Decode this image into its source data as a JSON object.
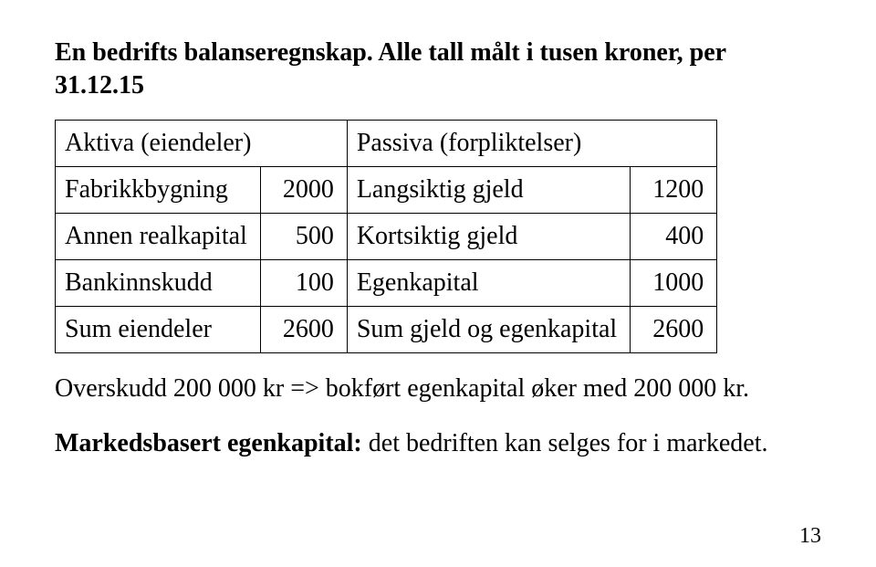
{
  "heading": "En bedrifts balanseregnskap. Alle tall målt i tusen kroner, per 31.12.15",
  "table": {
    "rows": [
      {
        "c1": "Aktiva (eiendeler)",
        "c2": "",
        "c3": "Passiva (forpliktelser)",
        "c4": "",
        "header": true
      },
      {
        "c1": "Fabrikkbygning",
        "c2": "2000",
        "c3": "Langsiktig gjeld",
        "c4": "1200"
      },
      {
        "c1": "Annen realkapital",
        "c2": "500",
        "c3": "Kortsiktig gjeld",
        "c4": "400"
      },
      {
        "c1": "Bankinnskudd",
        "c2": "100",
        "c3": "Egenkapital",
        "c4": "1000"
      },
      {
        "c1": "Sum eiendeler",
        "c2": "2600",
        "c3": "Sum gjeld og egenkapital",
        "c4": "2600"
      }
    ]
  },
  "overskudd_line": "Overskudd 200 000 kr => bokført egenkapital øker med 200 000 kr.",
  "markedsbasert_bold": "Markedsbasert egenkapital:",
  "markedsbasert_rest": " det bedriften kan selges for i markedet.",
  "page_number": "13"
}
